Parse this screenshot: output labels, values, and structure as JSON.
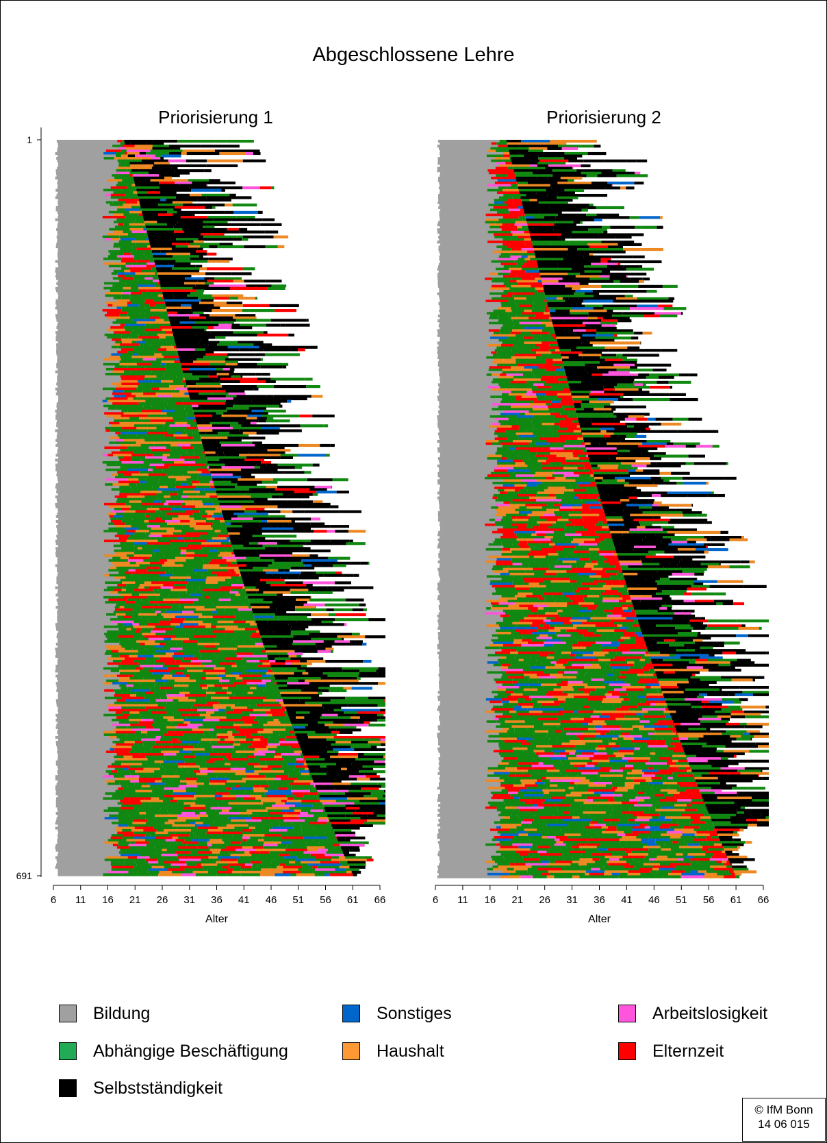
{
  "figure_title": "Abgeschlossene Lehre",
  "copyright": {
    "line1": "© IfM Bonn",
    "line2": "14 06 015"
  },
  "colors": {
    "Bildung": "#a0a0a0",
    "Sonstiges": "#0066cc",
    "Arbeitslosigkeit": "#ff55dd",
    "Abhaengige": "#118811",
    "Haushalt": "#ee8822",
    "Elternzeit": "#ff0000",
    "Selbststaendigkeit": "#000000"
  },
  "legend": [
    {
      "label": "Bildung",
      "color": "#a0a0a0"
    },
    {
      "label": "Sonstiges",
      "color": "#0066cc"
    },
    {
      "label": "Arbeitslosigkeit",
      "color": "#ff55dd"
    },
    {
      "label": "Abhängige Beschäftigung",
      "color": "#22aa55"
    },
    {
      "label": "Haushalt",
      "color": "#ff9933"
    },
    {
      "label": "Elternzeit",
      "color": "#ff0000"
    },
    {
      "label": "Selbstständigkeit",
      "color": "#000000"
    }
  ],
  "chart_data": [
    {
      "type": "sequence-index-plot",
      "title": "Priorisierung 1",
      "xlabel": "Alter",
      "x_ticks": [
        6,
        11,
        16,
        21,
        26,
        31,
        36,
        41,
        46,
        51,
        56,
        61,
        66
      ],
      "xlim": [
        6,
        66
      ],
      "y_ticks": [
        "1",
        "691"
      ],
      "n_sequences": 691,
      "states": [
        "Bildung",
        "Sonstiges",
        "Arbeitslosigkeit",
        "Abhängige Beschäftigung",
        "Haushalt",
        "Elternzeit",
        "Selbstständigkeit"
      ],
      "self_employment_onset_age": {
        "first_sequence": 19,
        "last_sequence": 61
      },
      "sequence_end_age_range": [
        41,
        67
      ]
    },
    {
      "type": "sequence-index-plot",
      "title": "Priorisierung 2",
      "xlabel": "Alter",
      "x_ticks": [
        6,
        11,
        16,
        21,
        26,
        31,
        36,
        41,
        46,
        51,
        56,
        61,
        66
      ],
      "xlim": [
        6,
        66
      ],
      "y_ticks": [],
      "n_sequences": 691,
      "states": [
        "Bildung",
        "Sonstiges",
        "Arbeitslosigkeit",
        "Abhängige Beschäftigung",
        "Haushalt",
        "Elternzeit",
        "Selbstständigkeit"
      ],
      "self_employment_onset_age": {
        "first_sequence": 19,
        "last_sequence": 61
      },
      "sequence_end_age_range": [
        41,
        67
      ]
    }
  ]
}
